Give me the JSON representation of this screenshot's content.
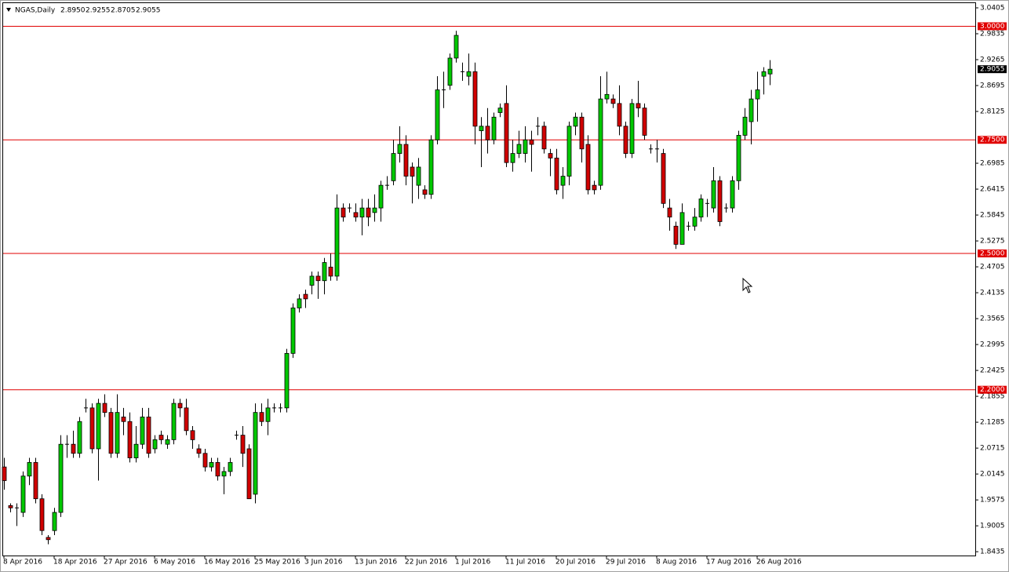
{
  "chart_data": {
    "type": "candlestick",
    "title": "NGAS,Daily",
    "header_labels": [
      "2.8950",
      "2.9255",
      "2.8705",
      "2.9055"
    ],
    "categories": [
      "8 Apr 2016",
      null,
      null,
      null,
      null,
      null,
      null,
      null,
      "18 Apr 2016",
      null,
      null,
      null,
      null,
      null,
      null,
      null,
      "27 Apr 2016",
      null,
      null,
      null,
      null,
      null,
      null,
      null,
      "6 May 2016",
      null,
      null,
      null,
      null,
      null,
      null,
      null,
      "16 May 2016",
      null,
      null,
      null,
      null,
      null,
      null,
      null,
      "25 May 2016",
      null,
      null,
      null,
      null,
      null,
      null,
      null,
      "3 Jun 2016",
      null,
      null,
      null,
      null,
      null,
      null,
      null,
      "13 Jun 2016",
      null,
      null,
      null,
      null,
      null,
      null,
      null,
      "22 Jun 2016",
      null,
      null,
      null,
      null,
      null,
      null,
      null,
      "1 Jul 2016",
      null,
      null,
      null,
      null,
      null,
      null,
      null,
      "11 Jul 2016",
      null,
      null,
      null,
      null,
      null,
      null,
      null,
      "20 Jul 2016",
      null,
      null,
      null,
      null,
      null,
      null,
      null,
      "29 Jul 2016",
      null,
      null,
      null,
      null,
      null,
      null,
      null,
      "8 Aug 2016",
      null,
      null,
      null,
      null,
      null,
      null,
      null,
      "17 Aug 2016",
      null,
      null,
      null,
      null,
      null,
      null,
      null,
      "26 Aug 2016",
      null,
      null
    ],
    "open": [
      2.03,
      1.945,
      1.94,
      1.93,
      2.01,
      2.04,
      1.96,
      1.875,
      1.89,
      1.93,
      2.08,
      2.08,
      2.06,
      2.16,
      2.16,
      2.07,
      2.17,
      2.15,
      2.06,
      2.14,
      2.13,
      2.05,
      2.08,
      2.14,
      2.07,
      2.1,
      2.08,
      2.09,
      2.17,
      2.16,
      2.11,
      2.07,
      2.06,
      2.03,
      2.04,
      2.01,
      2.02,
      2.1,
      2.1,
      2.07,
      1.97,
      2.15,
      2.13,
      2.16,
      2.16,
      2.16,
      2.28,
      2.38,
      2.41,
      2.43,
      2.45,
      2.44,
      2.47,
      2.45,
      2.6,
      2.6,
      2.59,
      2.58,
      2.6,
      2.59,
      2.6,
      2.65,
      2.66,
      2.72,
      2.74,
      2.69,
      2.65,
      2.64,
      2.63,
      2.75,
      2.86,
      2.87,
      2.93,
      2.9,
      2.89,
      2.9,
      2.77,
      2.78,
      2.75,
      2.81,
      2.83,
      2.7,
      2.72,
      2.72,
      2.75,
      2.78,
      2.78,
      2.72,
      2.71,
      2.65,
      2.67,
      2.78,
      2.8,
      2.74,
      2.65,
      2.65,
      2.84,
      2.84,
      2.83,
      2.78,
      2.72,
      2.83,
      2.82,
      2.73,
      2.73,
      2.72,
      2.6,
      2.56,
      2.52,
      2.56,
      2.56,
      2.58,
      2.61,
      2.6,
      2.66,
      2.6,
      2.6,
      2.66,
      2.76,
      2.79,
      2.84,
      2.89,
      2.895
    ],
    "high": [
      2.05,
      1.95,
      1.95,
      2.02,
      2.05,
      2.05,
      1.97,
      1.88,
      1.94,
      2.1,
      2.1,
      2.11,
      2.14,
      2.18,
      2.17,
      2.18,
      2.19,
      2.16,
      2.19,
      2.16,
      2.15,
      2.12,
      2.16,
      2.16,
      2.1,
      2.11,
      2.1,
      2.18,
      2.18,
      2.18,
      2.12,
      2.08,
      2.07,
      2.05,
      2.05,
      2.03,
      2.05,
      2.11,
      2.12,
      2.08,
      2.17,
      2.17,
      2.18,
      2.17,
      2.17,
      2.29,
      2.39,
      2.41,
      2.42,
      2.46,
      2.46,
      2.49,
      2.5,
      2.63,
      2.61,
      2.61,
      2.61,
      2.62,
      2.62,
      2.63,
      2.66,
      2.67,
      2.75,
      2.78,
      2.76,
      2.7,
      2.71,
      2.65,
      2.76,
      2.89,
      2.9,
      2.94,
      2.99,
      2.92,
      2.94,
      2.92,
      2.8,
      2.82,
      2.81,
      2.83,
      2.87,
      2.75,
      2.77,
      2.78,
      2.77,
      2.8,
      2.79,
      2.73,
      2.73,
      2.69,
      2.79,
      2.81,
      2.81,
      2.76,
      2.66,
      2.89,
      2.9,
      2.85,
      2.87,
      2.79,
      2.84,
      2.88,
      2.83,
      2.74,
      2.75,
      2.73,
      2.62,
      2.57,
      2.61,
      2.57,
      2.6,
      2.63,
      2.62,
      2.69,
      2.67,
      2.61,
      2.67,
      2.77,
      2.82,
      2.86,
      2.9,
      2.91,
      2.9255
    ],
    "low": [
      1.98,
      1.93,
      1.9,
      1.92,
      1.99,
      1.95,
      1.88,
      1.86,
      1.88,
      1.92,
      2.05,
      2.05,
      2.05,
      2.15,
      2.06,
      2.0,
      2.14,
      2.05,
      2.05,
      2.1,
      2.04,
      2.04,
      2.07,
      2.05,
      2.06,
      2.08,
      2.07,
      2.08,
      2.14,
      2.1,
      2.07,
      2.05,
      2.02,
      2.02,
      2.0,
      1.97,
      2.01,
      2.09,
      2.03,
      1.96,
      1.95,
      2.12,
      2.1,
      2.15,
      2.15,
      2.15,
      2.27,
      2.37,
      2.38,
      2.41,
      2.4,
      2.41,
      2.44,
      2.44,
      2.57,
      2.59,
      2.57,
      2.54,
      2.56,
      2.57,
      2.57,
      2.64,
      2.65,
      2.7,
      2.65,
      2.61,
      2.62,
      2.62,
      2.62,
      2.74,
      2.82,
      2.86,
      2.92,
      2.88,
      2.87,
      2.74,
      2.69,
      2.72,
      2.74,
      2.8,
      2.69,
      2.68,
      2.71,
      2.7,
      2.68,
      2.76,
      2.72,
      2.67,
      2.63,
      2.62,
      2.65,
      2.76,
      2.7,
      2.63,
      2.63,
      2.64,
      2.83,
      2.82,
      2.76,
      2.71,
      2.71,
      2.8,
      2.75,
      2.72,
      2.7,
      2.6,
      2.55,
      2.51,
      2.52,
      2.55,
      2.55,
      2.57,
      2.58,
      2.59,
      2.56,
      2.59,
      2.59,
      2.64,
      2.75,
      2.74,
      2.79,
      2.85,
      2.8705
    ],
    "close": [
      2.0,
      1.94,
      1.94,
      2.01,
      2.04,
      1.96,
      1.89,
      1.87,
      1.93,
      2.08,
      2.08,
      2.06,
      2.13,
      2.16,
      2.07,
      2.17,
      2.15,
      2.06,
      2.15,
      2.13,
      2.05,
      2.08,
      2.14,
      2.06,
      2.09,
      2.09,
      2.09,
      2.17,
      2.16,
      2.11,
      2.09,
      2.06,
      2.03,
      2.04,
      2.01,
      2.02,
      2.04,
      2.1,
      2.06,
      1.96,
      2.15,
      2.13,
      2.16,
      2.16,
      2.16,
      2.28,
      2.38,
      2.4,
      2.4,
      2.45,
      2.44,
      2.48,
      2.45,
      2.6,
      2.58,
      2.6,
      2.58,
      2.6,
      2.58,
      2.6,
      2.65,
      2.65,
      2.72,
      2.74,
      2.67,
      2.67,
      2.69,
      2.63,
      2.75,
      2.86,
      2.86,
      2.93,
      2.98,
      2.9,
      2.9,
      2.78,
      2.78,
      2.75,
      2.8,
      2.82,
      2.7,
      2.72,
      2.74,
      2.75,
      2.74,
      2.78,
      2.73,
      2.71,
      2.64,
      2.67,
      2.78,
      2.8,
      2.73,
      2.64,
      2.64,
      2.84,
      2.85,
      2.83,
      2.78,
      2.72,
      2.83,
      2.82,
      2.76,
      2.73,
      2.73,
      2.61,
      2.58,
      2.52,
      2.59,
      2.56,
      2.58,
      2.62,
      2.61,
      2.66,
      2.57,
      2.6,
      2.66,
      2.76,
      2.8,
      2.84,
      2.86,
      2.9,
      2.9055
    ],
    "up_color": "#00c800",
    "down_color": "#d00000",
    "level_color": "#e00000",
    "levels": [
      {
        "value": 3.0,
        "label": "3.0000"
      },
      {
        "value": 2.75,
        "label": "2.7500"
      },
      {
        "value": 2.5,
        "label": "2.5000"
      },
      {
        "value": 2.2,
        "label": "2.2000"
      }
    ],
    "ylim": [
      1.8351,
      3.0526
    ],
    "yticks": [
      3.0405,
      2.9835,
      2.9265,
      2.8695,
      2.8125,
      2.6985,
      2.6415,
      2.5845,
      2.5275,
      2.4705,
      2.4135,
      2.3565,
      2.2995,
      2.2425,
      2.1855,
      2.1285,
      2.0715,
      2.0145,
      1.9575,
      1.9005,
      1.8435
    ]
  }
}
